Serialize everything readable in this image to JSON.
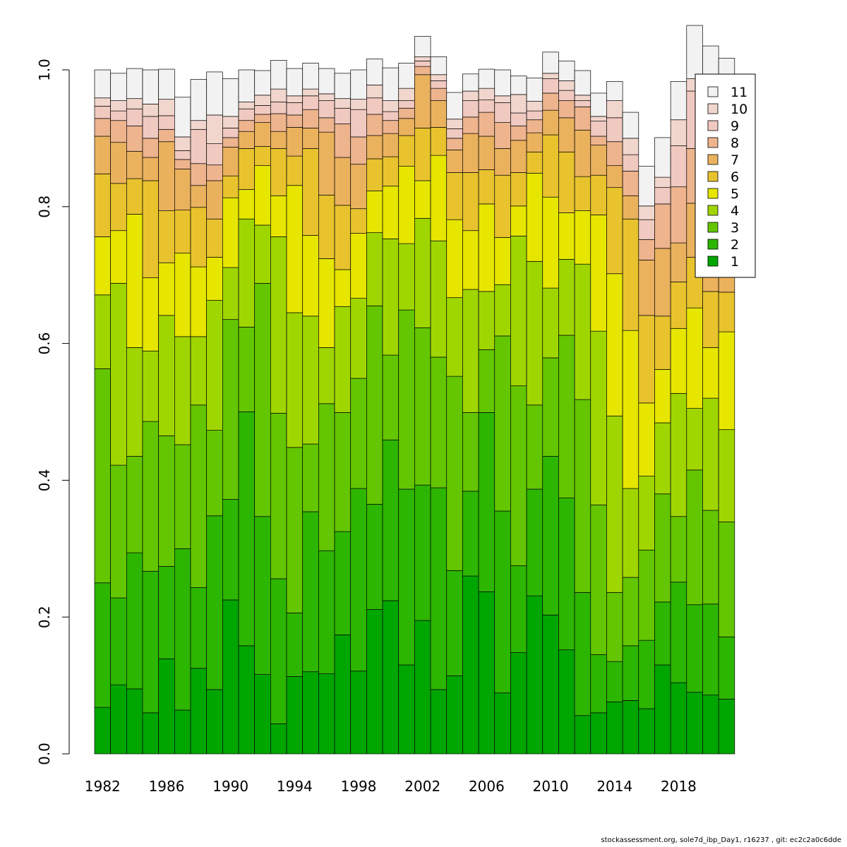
{
  "chart_data": {
    "type": "bar",
    "stacked": true,
    "title": "",
    "xlabel": "",
    "ylabel": "",
    "ylim": [
      0,
      1
    ],
    "yticks": [
      "0.0",
      "0.2",
      "0.4",
      "0.6",
      "0.8",
      "1.0"
    ],
    "xtick_labels": [
      "1982",
      "1986",
      "1990",
      "1994",
      "1998",
      "2002",
      "2006",
      "2010",
      "2014",
      "2018"
    ],
    "legend": {
      "position": "top-right"
    },
    "categories": [
      "1982",
      "1983",
      "1984",
      "1985",
      "1986",
      "1987",
      "1988",
      "1989",
      "1990",
      "1991",
      "1992",
      "1993",
      "1994",
      "1995",
      "1996",
      "1997",
      "1998",
      "1999",
      "2000",
      "2001",
      "2002",
      "2003",
      "2004",
      "2005",
      "2006",
      "2007",
      "2008",
      "2009",
      "2010",
      "2011",
      "2012",
      "2013",
      "2014",
      "2015",
      "2016",
      "2017",
      "2018",
      "2019",
      "2020",
      "2021"
    ],
    "series": [
      {
        "name": "1",
        "color": "#00A600",
        "values": [
          0.068,
          0.101,
          0.095,
          0.06,
          0.139,
          0.064,
          0.125,
          0.094,
          0.225,
          0.158,
          0.116,
          0.044,
          0.113,
          0.12,
          0.117,
          0.174,
          0.121,
          0.211,
          0.224,
          0.13,
          0.195,
          0.094,
          0.114,
          0.26,
          0.237,
          0.089,
          0.148,
          0.231,
          0.203,
          0.152,
          0.056,
          0.06,
          0.076,
          0.078,
          0.066,
          0.13,
          0.104,
          0.09,
          0.086,
          0.08
        ]
      },
      {
        "name": "2",
        "color": "#2DB600",
        "values": [
          0.182,
          0.127,
          0.199,
          0.207,
          0.135,
          0.236,
          0.118,
          0.254,
          0.147,
          0.342,
          0.231,
          0.212,
          0.093,
          0.234,
          0.18,
          0.151,
          0.267,
          0.154,
          0.235,
          0.257,
          0.198,
          0.295,
          0.154,
          0.124,
          0.262,
          0.266,
          0.127,
          0.156,
          0.232,
          0.222,
          0.18,
          0.085,
          0.059,
          0.08,
          0.1,
          0.092,
          0.147,
          0.128,
          0.133,
          0.091
        ]
      },
      {
        "name": "3",
        "color": "#63C600",
        "values": [
          0.313,
          0.194,
          0.141,
          0.219,
          0.191,
          0.152,
          0.267,
          0.125,
          0.263,
          0.124,
          0.341,
          0.242,
          0.242,
          0.099,
          0.215,
          0.174,
          0.161,
          0.29,
          0.124,
          0.262,
          0.23,
          0.191,
          0.284,
          0.115,
          0.092,
          0.256,
          0.263,
          0.123,
          0.144,
          0.238,
          0.282,
          0.219,
          0.101,
          0.1,
          0.132,
          0.158,
          0.096,
          0.197,
          0.137,
          0.168
        ]
      },
      {
        "name": "4",
        "color": "#A0D600",
        "values": [
          0.108,
          0.266,
          0.159,
          0.103,
          0.176,
          0.158,
          0.1,
          0.19,
          0.076,
          0.158,
          0.085,
          0.258,
          0.197,
          0.187,
          0.082,
          0.155,
          0.117,
          0.107,
          0.17,
          0.097,
          0.16,
          0.17,
          0.115,
          0.18,
          0.085,
          0.075,
          0.219,
          0.21,
          0.102,
          0.111,
          0.198,
          0.254,
          0.258,
          0.13,
          0.108,
          0.104,
          0.18,
          0.09,
          0.164,
          0.135
        ]
      },
      {
        "name": "5",
        "color": "#E6E600",
        "values": [
          0.085,
          0.077,
          0.195,
          0.107,
          0.077,
          0.122,
          0.102,
          0.063,
          0.102,
          0.043,
          0.087,
          0.06,
          0.186,
          0.118,
          0.13,
          0.054,
          0.095,
          0.061,
          0.077,
          0.113,
          0.055,
          0.125,
          0.114,
          0.086,
          0.128,
          0.069,
          0.044,
          0.129,
          0.133,
          0.068,
          0.078,
          0.17,
          0.208,
          0.231,
          0.107,
          0.078,
          0.095,
          0.147,
          0.074,
          0.143
        ]
      },
      {
        "name": "6",
        "color": "#E8C32E",
        "values": [
          0.092,
          0.069,
          0.052,
          0.142,
          0.076,
          0.063,
          0.087,
          0.056,
          0.032,
          0.06,
          0.028,
          0.069,
          0.043,
          0.127,
          0.093,
          0.094,
          0.036,
          0.047,
          0.043,
          0.045,
          0.077,
          0.041,
          0.069,
          0.085,
          0.05,
          0.091,
          0.049,
          0.031,
          0.091,
          0.089,
          0.05,
          0.058,
          0.126,
          0.163,
          0.128,
          0.078,
          0.068,
          0.074,
          0.082,
          0.058
        ]
      },
      {
        "name": "7",
        "color": "#EBB25E",
        "values": [
          0.055,
          0.06,
          0.04,
          0.034,
          0.101,
          0.06,
          0.032,
          0.056,
          0.042,
          0.025,
          0.035,
          0.025,
          0.042,
          0.03,
          0.092,
          0.07,
          0.065,
          0.034,
          0.034,
          0.025,
          0.078,
          0.039,
          0.033,
          0.057,
          0.049,
          0.039,
          0.047,
          0.028,
          0.036,
          0.05,
          0.068,
          0.044,
          0.032,
          0.034,
          0.081,
          0.099,
          0.057,
          0.079,
          0.082,
          0.088
        ]
      },
      {
        "name": "8",
        "color": "#EDB48E",
        "values": [
          0.026,
          0.032,
          0.037,
          0.028,
          0.018,
          0.014,
          0.032,
          0.023,
          0.014,
          0.016,
          0.012,
          0.026,
          0.018,
          0.027,
          0.021,
          0.049,
          0.04,
          0.031,
          0.019,
          0.015,
          0.012,
          0.018,
          0.017,
          0.024,
          0.035,
          0.038,
          0.021,
          0.019,
          0.025,
          0.025,
          0.034,
          0.013,
          0.035,
          0.036,
          0.03,
          0.065,
          0.082,
          0.08,
          0.075,
          0.068
        ]
      },
      {
        "name": "9",
        "color": "#F0C9C0",
        "values": [
          0.018,
          0.014,
          0.025,
          0.032,
          0.02,
          0.013,
          0.05,
          0.031,
          0.014,
          0.017,
          0.013,
          0.017,
          0.018,
          0.02,
          0.025,
          0.023,
          0.04,
          0.024,
          0.013,
          0.011,
          0.008,
          0.011,
          0.014,
          0.024,
          0.018,
          0.029,
          0.019,
          0.013,
          0.021,
          0.015,
          0.009,
          0.022,
          0.035,
          0.024,
          0.029,
          0.024,
          0.06,
          0.084,
          0.09,
          0.07
        ]
      },
      {
        "name": "10",
        "color": "#F1D6CD",
        "values": [
          0.012,
          0.015,
          0.015,
          0.018,
          0.024,
          0.02,
          0.013,
          0.042,
          0.017,
          0.01,
          0.015,
          0.019,
          0.01,
          0.01,
          0.01,
          0.014,
          0.015,
          0.019,
          0.016,
          0.018,
          0.006,
          0.009,
          0.014,
          0.014,
          0.017,
          0.01,
          0.027,
          0.014,
          0.008,
          0.014,
          0.008,
          0.007,
          0.025,
          0.024,
          0.02,
          0.015,
          0.038,
          0.018,
          0.02,
          0.024
        ]
      },
      {
        "name": "11",
        "color": "#F2F2F2",
        "values": [
          0.041,
          0.04,
          0.044,
          0.05,
          0.044,
          0.058,
          0.06,
          0.063,
          0.055,
          0.047,
          0.036,
          0.042,
          0.04,
          0.038,
          0.037,
          0.037,
          0.043,
          0.038,
          0.048,
          0.037,
          0.03,
          0.026,
          0.039,
          0.025,
          0.028,
          0.038,
          0.027,
          0.034,
          0.031,
          0.029,
          0.036,
          0.034,
          0.028,
          0.038,
          0.058,
          0.058,
          0.056,
          0.078,
          0.092,
          0.092
        ]
      }
    ]
  },
  "footer": "stockassessment.org, sole7d_ibp_Day1, r16237 , git: ec2c2a0c6dde"
}
